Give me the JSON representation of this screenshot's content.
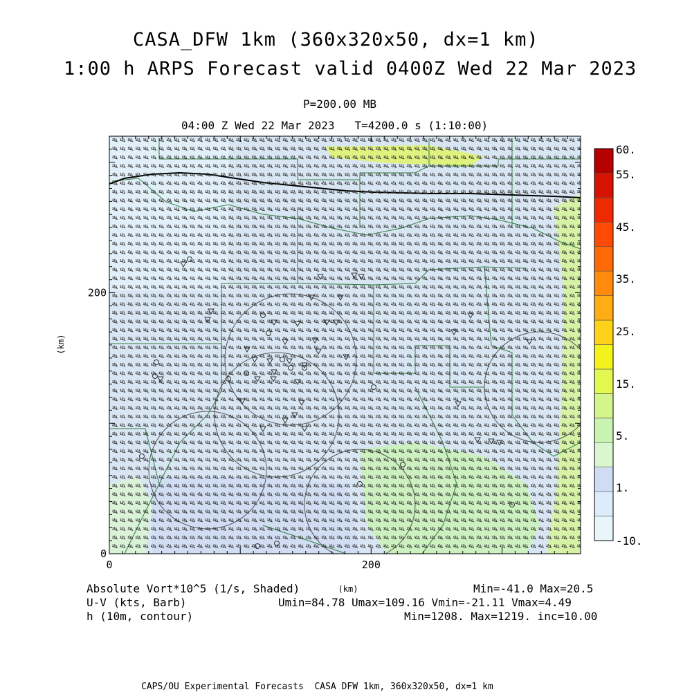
{
  "header": {
    "title_line1": "CASA_DFW 1km (360x320x50, dx=1 km)",
    "title_line2": "1:00 h ARPS Forecast valid 0400Z Wed 22 Mar 2023",
    "level": "P=200.00 MB",
    "time_line": "04:00 Z Wed 22 Mar 2023   T=4200.0 s (1:10:00)"
  },
  "chart_data": {
    "type": "heatmap",
    "x_axis": {
      "label": "(km)",
      "ticks": [
        0,
        200
      ],
      "range": [
        0,
        360
      ]
    },
    "y_axis": {
      "label": "(km)",
      "ticks": [
        0,
        200
      ],
      "range": [
        0,
        320
      ]
    },
    "colorbar": {
      "labels": [
        "60.",
        "55.",
        "45.",
        "35.",
        "25.",
        "15.",
        "5.",
        "1.",
        "-10."
      ],
      "levels": [
        -10,
        -5,
        0,
        1,
        3,
        5,
        10,
        15,
        20,
        25,
        30,
        35,
        40,
        45,
        50,
        55,
        60
      ],
      "colors": [
        "#e8f6fc",
        "#dcecfa",
        "#cfdcf3",
        "#d9f6cf",
        "#c9f3b1",
        "#d4f58c",
        "#e2f74f",
        "#f3f21c",
        "#ffd21a",
        "#ffad14",
        "#ff8a0d",
        "#ff6a09",
        "#ff4a05",
        "#ee2a03",
        "#d81200",
        "#b50000"
      ]
    },
    "fields": {
      "shaded": "Absolute Vort*10^5 (1/s, Shaded)",
      "shaded_range": "Min=-41.0 Max=20.5",
      "barbs": "U-V (kts, Barb)",
      "barbs_range": "Umin=84.78 Umax=109.16 Vmin=-21.11 Vmax=4.49",
      "contour": "h (10m, contour)",
      "contour_range": "Min=1208. Max=1219. inc=10.00"
    }
  },
  "footer": "CAPS/OU Experimental Forecasts  CASA DFW 1km, 360x320x50, dx=1 km"
}
